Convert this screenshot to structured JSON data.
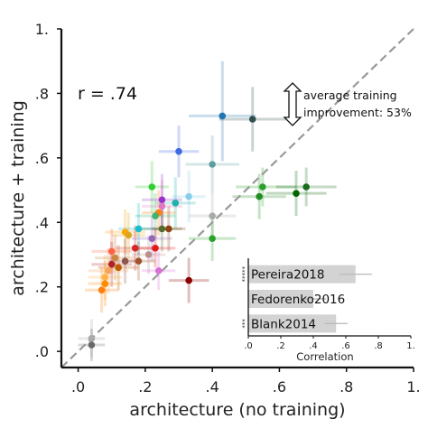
{
  "chart_data": {
    "type": "scatter",
    "xlabel": "architecture (no training)",
    "ylabel": "architecture + training",
    "xlim": [
      -0.05,
      1.0
    ],
    "ylim": [
      -0.05,
      1.0
    ],
    "x_ticks": [
      {
        "value": 0.0,
        "label": ".0"
      },
      {
        "value": 0.2,
        "label": ".2"
      },
      {
        "value": 0.4,
        "label": ".4"
      },
      {
        "value": 0.6,
        "label": ".6"
      },
      {
        "value": 0.8,
        "label": ".8"
      },
      {
        "value": 1.0,
        "label": "1."
      }
    ],
    "y_ticks": [
      {
        "value": 0.0,
        "label": ".0"
      },
      {
        "value": 0.2,
        "label": ".2"
      },
      {
        "value": 0.4,
        "label": ".4"
      },
      {
        "value": 0.6,
        "label": ".6"
      },
      {
        "value": 0.8,
        "label": ".8"
      },
      {
        "value": 1.0,
        "label": "1."
      }
    ],
    "correlation_label": "r = .74",
    "annotation": "average training improvement: 53%",
    "annotation_lines": [
      "average training",
      "improvement: 53%"
    ],
    "diagonal": "identity",
    "points": [
      {
        "x": 0.43,
        "y": 0.73,
        "xerr": [
          0.1,
          0.1
        ],
        "yerr": [
          0.14,
          0.17
        ],
        "color": "#1f77b4"
      },
      {
        "x": 0.52,
        "y": 0.72,
        "xerr": [
          0.1,
          0.1
        ],
        "yerr": [
          0.1,
          0.1
        ],
        "color": "#2f4f4f"
      },
      {
        "x": 0.3,
        "y": 0.62,
        "xerr": [
          0.06,
          0.06
        ],
        "yerr": [
          0.08,
          0.08
        ],
        "color": "#4169e1"
      },
      {
        "x": 0.4,
        "y": 0.58,
        "xerr": [
          0.08,
          0.08
        ],
        "yerr": [
          0.09,
          0.09
        ],
        "color": "#5f9ea0"
      },
      {
        "x": 0.55,
        "y": 0.51,
        "xerr": [
          0.08,
          0.1
        ],
        "yerr": [
          0.06,
          0.06
        ],
        "color": "#2ca02c"
      },
      {
        "x": 0.54,
        "y": 0.48,
        "xerr": [
          0.08,
          0.08
        ],
        "yerr": [
          0.07,
          0.07
        ],
        "color": "#228b22"
      },
      {
        "x": 0.65,
        "y": 0.49,
        "xerr": [
          0.09,
          0.09
        ],
        "yerr": [
          0.07,
          0.07
        ],
        "color": "#006400"
      },
      {
        "x": 0.68,
        "y": 0.51,
        "xerr": [
          0.09,
          0.09
        ],
        "yerr": [
          0.06,
          0.06
        ],
        "color": "#1a6b1a"
      },
      {
        "x": 0.22,
        "y": 0.51,
        "xerr": [
          0.05,
          0.05
        ],
        "yerr": [
          0.08,
          0.08
        ],
        "color": "#32cd32"
      },
      {
        "x": 0.25,
        "y": 0.47,
        "xerr": [
          0.06,
          0.06
        ],
        "yerr": [
          0.08,
          0.08
        ],
        "color": "#9932cc"
      },
      {
        "x": 0.33,
        "y": 0.48,
        "xerr": [
          0.05,
          0.05
        ],
        "yerr": [
          0.08,
          0.08
        ],
        "color": "#87ceeb"
      },
      {
        "x": 0.29,
        "y": 0.46,
        "xerr": [
          0.06,
          0.06
        ],
        "yerr": [
          0.08,
          0.08
        ],
        "color": "#20b2aa"
      },
      {
        "x": 0.25,
        "y": 0.45,
        "xerr": [
          0.06,
          0.06
        ],
        "yerr": [
          0.08,
          0.08
        ],
        "color": "#e377c2"
      },
      {
        "x": 0.24,
        "y": 0.43,
        "xerr": [
          0.05,
          0.05
        ],
        "yerr": [
          0.07,
          0.07
        ],
        "color": "#ff7f0e"
      },
      {
        "x": 0.23,
        "y": 0.42,
        "xerr": [
          0.06,
          0.06
        ],
        "yerr": [
          0.07,
          0.07
        ],
        "color": "#3cb371"
      },
      {
        "x": 0.4,
        "y": 0.42,
        "xerr": [
          0.07,
          0.07
        ],
        "yerr": [
          0.07,
          0.07
        ],
        "color": "#a9a9a9"
      },
      {
        "x": 0.18,
        "y": 0.38,
        "xerr": [
          0.06,
          0.06
        ],
        "yerr": [
          0.08,
          0.08
        ],
        "color": "#17becf"
      },
      {
        "x": 0.25,
        "y": 0.38,
        "xerr": [
          0.06,
          0.06
        ],
        "yerr": [
          0.07,
          0.07
        ],
        "color": "#556b2f"
      },
      {
        "x": 0.27,
        "y": 0.38,
        "xerr": [
          0.05,
          0.05
        ],
        "yerr": [
          0.07,
          0.07
        ],
        "color": "#8b4513"
      },
      {
        "x": 0.14,
        "y": 0.37,
        "xerr": [
          0.06,
          0.06
        ],
        "yerr": [
          0.07,
          0.07
        ],
        "color": "#ffa500"
      },
      {
        "x": 0.15,
        "y": 0.36,
        "xerr": [
          0.05,
          0.05
        ],
        "yerr": [
          0.07,
          0.07
        ],
        "color": "#daa520"
      },
      {
        "x": 0.22,
        "y": 0.35,
        "xerr": [
          0.06,
          0.06
        ],
        "yerr": [
          0.07,
          0.07
        ],
        "color": "#9467bd"
      },
      {
        "x": 0.4,
        "y": 0.35,
        "xerr": [
          0.07,
          0.07
        ],
        "yerr": [
          0.07,
          0.07
        ],
        "color": "#2ca02c"
      },
      {
        "x": 0.17,
        "y": 0.32,
        "xerr": [
          0.06,
          0.06
        ],
        "yerr": [
          0.07,
          0.07
        ],
        "color": "#d62728"
      },
      {
        "x": 0.23,
        "y": 0.32,
        "xerr": [
          0.06,
          0.06
        ],
        "yerr": [
          0.06,
          0.06
        ],
        "color": "#e31a1c"
      },
      {
        "x": 0.1,
        "y": 0.31,
        "xerr": [
          0.06,
          0.06
        ],
        "yerr": [
          0.07,
          0.07
        ],
        "color": "#ff6347"
      },
      {
        "x": 0.21,
        "y": 0.3,
        "xerr": [
          0.05,
          0.05
        ],
        "yerr": [
          0.06,
          0.06
        ],
        "color": "#bc8f8f"
      },
      {
        "x": 0.11,
        "y": 0.29,
        "xerr": [
          0.06,
          0.06
        ],
        "yerr": [
          0.07,
          0.07
        ],
        "color": "#cd853f"
      },
      {
        "x": 0.14,
        "y": 0.28,
        "xerr": [
          0.05,
          0.05
        ],
        "yerr": [
          0.07,
          0.07
        ],
        "color": "#8c564b"
      },
      {
        "x": 0.18,
        "y": 0.28,
        "xerr": [
          0.05,
          0.05
        ],
        "yerr": [
          0.06,
          0.06
        ],
        "color": "#a0522d"
      },
      {
        "x": 0.1,
        "y": 0.27,
        "xerr": [
          0.06,
          0.06
        ],
        "yerr": [
          0.07,
          0.07
        ],
        "color": "#b22222"
      },
      {
        "x": 0.12,
        "y": 0.26,
        "xerr": [
          0.06,
          0.06
        ],
        "yerr": [
          0.07,
          0.07
        ],
        "color": "#bd5e00"
      },
      {
        "x": 0.09,
        "y": 0.25,
        "xerr": [
          0.06,
          0.06
        ],
        "yerr": [
          0.07,
          0.07
        ],
        "color": "#f4a460"
      },
      {
        "x": 0.24,
        "y": 0.25,
        "xerr": [
          0.05,
          0.05
        ],
        "yerr": [
          0.06,
          0.06
        ],
        "color": "#da70d6"
      },
      {
        "x": 0.08,
        "y": 0.23,
        "xerr": [
          0.05,
          0.05
        ],
        "yerr": [
          0.07,
          0.07
        ],
        "color": "#ffb347"
      },
      {
        "x": 0.33,
        "y": 0.22,
        "xerr": [
          0.06,
          0.06
        ],
        "yerr": [
          0.07,
          0.07
        ],
        "color": "#8b0000"
      },
      {
        "x": 0.08,
        "y": 0.21,
        "xerr": [
          0.05,
          0.05
        ],
        "yerr": [
          0.07,
          0.07
        ],
        "color": "#ff8c00"
      },
      {
        "x": 0.07,
        "y": 0.19,
        "xerr": [
          0.05,
          0.05
        ],
        "yerr": [
          0.07,
          0.07
        ],
        "color": "#ff7f0e"
      },
      {
        "x": 0.04,
        "y": 0.04,
        "xerr": [
          0.04,
          0.04
        ],
        "yerr": [
          0.06,
          0.06
        ],
        "color": "#a9a9a9"
      },
      {
        "x": 0.04,
        "y": 0.02,
        "xerr": [
          0.04,
          0.04
        ],
        "yerr": [
          0.05,
          0.05
        ],
        "color": "#696969"
      }
    ],
    "inset": {
      "type": "bar",
      "orientation": "horizontal",
      "xlabel": "Correlation",
      "xlim": [
        0.0,
        1.0
      ],
      "x_ticks": [
        {
          "value": 0.0,
          "label": ".0"
        },
        {
          "value": 0.2,
          "label": ".2"
        },
        {
          "value": 0.4,
          "label": ".4"
        },
        {
          "value": 0.6,
          "label": ".6"
        },
        {
          "value": 0.8,
          "label": ".8"
        },
        {
          "value": 1.0,
          "label": "1."
        }
      ],
      "categories": [
        "Pereira2018",
        "Fedorenko2016",
        "Blank2014"
      ],
      "values": [
        0.66,
        0.4,
        0.54
      ],
      "errors": [
        0.1,
        0.08,
        0.07
      ],
      "significance": [
        "*****",
        "",
        "***"
      ]
    }
  }
}
